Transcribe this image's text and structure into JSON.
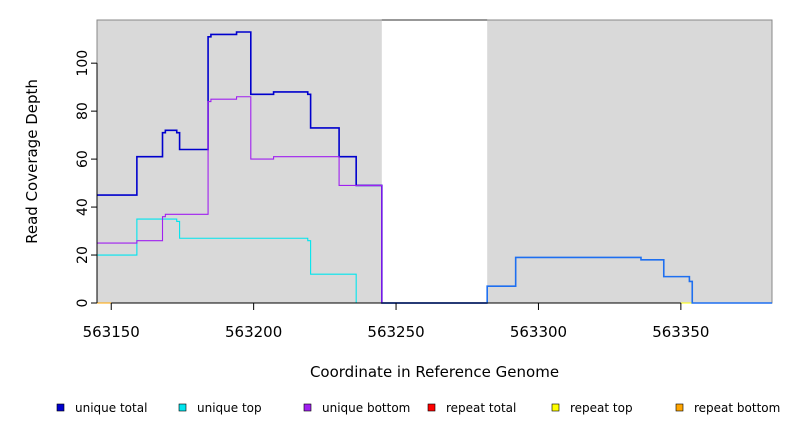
{
  "chart_data": {
    "type": "line",
    "step": true,
    "xlabel": "Coordinate in Reference Genome",
    "ylabel": "Read Coverage Depth",
    "xlim": [
      563145,
      563382
    ],
    "ylim": [
      0,
      118
    ],
    "xticks": [
      563150,
      563200,
      563250,
      563300,
      563350
    ],
    "yticks": [
      0,
      20,
      40,
      60,
      80,
      100
    ],
    "shaded_regions": [
      [
        563145,
        563245
      ],
      [
        563282,
        563382
      ]
    ],
    "shade_color": "#d9d9d9",
    "legend_position": "bottom",
    "series": [
      {
        "name": "unique total",
        "color": "#0000cd",
        "x": [
          563145,
          563159,
          563168,
          563169,
          563173,
          563174,
          563184,
          563185,
          563194,
          563199,
          563207,
          563219,
          563220,
          563230,
          563236,
          563245,
          563282
        ],
        "y": [
          45,
          61,
          71,
          72,
          71,
          64,
          111,
          112,
          113,
          87,
          88,
          87,
          73,
          61,
          49,
          0,
          0
        ]
      },
      {
        "name": "unique top",
        "color": "#00e5ee",
        "x": [
          563145,
          563159,
          563169,
          563173,
          563174,
          563219,
          563220,
          563236,
          563245
        ],
        "y": [
          20,
          35,
          35,
          34,
          27,
          26,
          12,
          0,
          0
        ]
      },
      {
        "name": "unique bottom",
        "color": "#a020f0",
        "x": [
          563145,
          563159,
          563168,
          563169,
          563184,
          563185,
          563194,
          563199,
          563207,
          563230,
          563245
        ],
        "y": [
          25,
          26,
          36,
          37,
          84,
          85,
          86,
          60,
          61,
          49,
          0
        ]
      },
      {
        "name": "repeat total",
        "color": "#ff0000",
        "x": [
          563145,
          563382
        ],
        "y": [
          0,
          0
        ]
      },
      {
        "name": "repeat top",
        "color": "#ffff00",
        "x": [
          563145,
          563382
        ],
        "y": [
          0,
          0
        ]
      },
      {
        "name": "repeat bottom",
        "color": "#ffa500",
        "x": [
          563145,
          563245
        ],
        "y": [
          0,
          0
        ]
      },
      {
        "name": "",
        "color": "#1e6ff0",
        "x": [
          563245,
          563282,
          563292,
          563336,
          563344,
          563353,
          563354,
          563382
        ],
        "y": [
          0,
          7,
          19,
          18,
          11,
          9,
          0,
          0
        ]
      }
    ],
    "legend": [
      {
        "name": "unique total",
        "color": "#0000cd"
      },
      {
        "name": "unique top",
        "color": "#00e5ee"
      },
      {
        "name": "unique bottom",
        "color": "#a020f0"
      },
      {
        "name": "repeat total",
        "color": "#ff0000"
      },
      {
        "name": "repeat top",
        "color": "#ffff00"
      },
      {
        "name": "repeat bottom",
        "color": "#ffa500"
      }
    ]
  }
}
